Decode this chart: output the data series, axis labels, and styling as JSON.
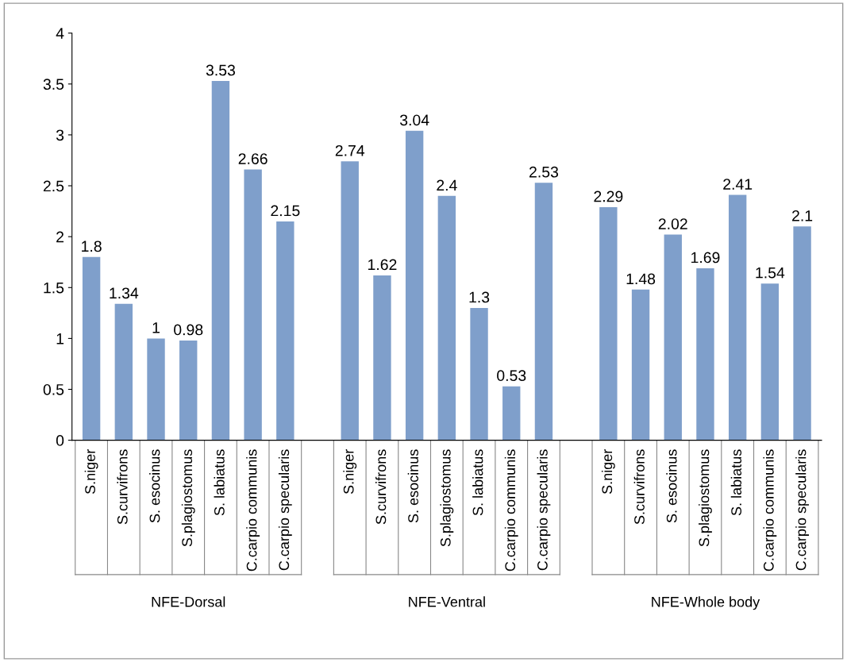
{
  "chart_data": {
    "type": "bar",
    "categories": [
      "S.niger",
      "S.curvifrons",
      "S. esocinus",
      "S.plagiostomus",
      "S. labiatus",
      "C.carpio communis",
      "C.carpio specularis",
      null,
      "S.niger",
      "S.curvifrons",
      "S. esocinus",
      "S.plagiostomus",
      "S. labiatus",
      "C.carpio communis",
      "C.carpio specularis",
      null,
      "S.niger",
      "S.curvifrons",
      "S. esocinus",
      "S.plagiostomus",
      "S. labiatus",
      "C.carpio communis",
      "C.carpio specularis"
    ],
    "values": [
      1.8,
      1.34,
      1,
      0.98,
      3.53,
      2.66,
      2.15,
      null,
      2.74,
      1.62,
      3.04,
      2.4,
      1.3,
      0.53,
      2.53,
      null,
      2.29,
      1.48,
      2.02,
      1.69,
      2.41,
      1.54,
      2.1
    ],
    "color": "#7f9fcb",
    "ylim": [
      0,
      4
    ],
    "yticks": [
      0,
      0.5,
      1,
      1.5,
      2,
      2.5,
      3,
      3.5,
      4
    ],
    "data_labels": true,
    "grid": false,
    "annotations": [
      "NFE-Dorsal",
      "NFE-Ventral",
      "NFE-Whole body"
    ]
  }
}
